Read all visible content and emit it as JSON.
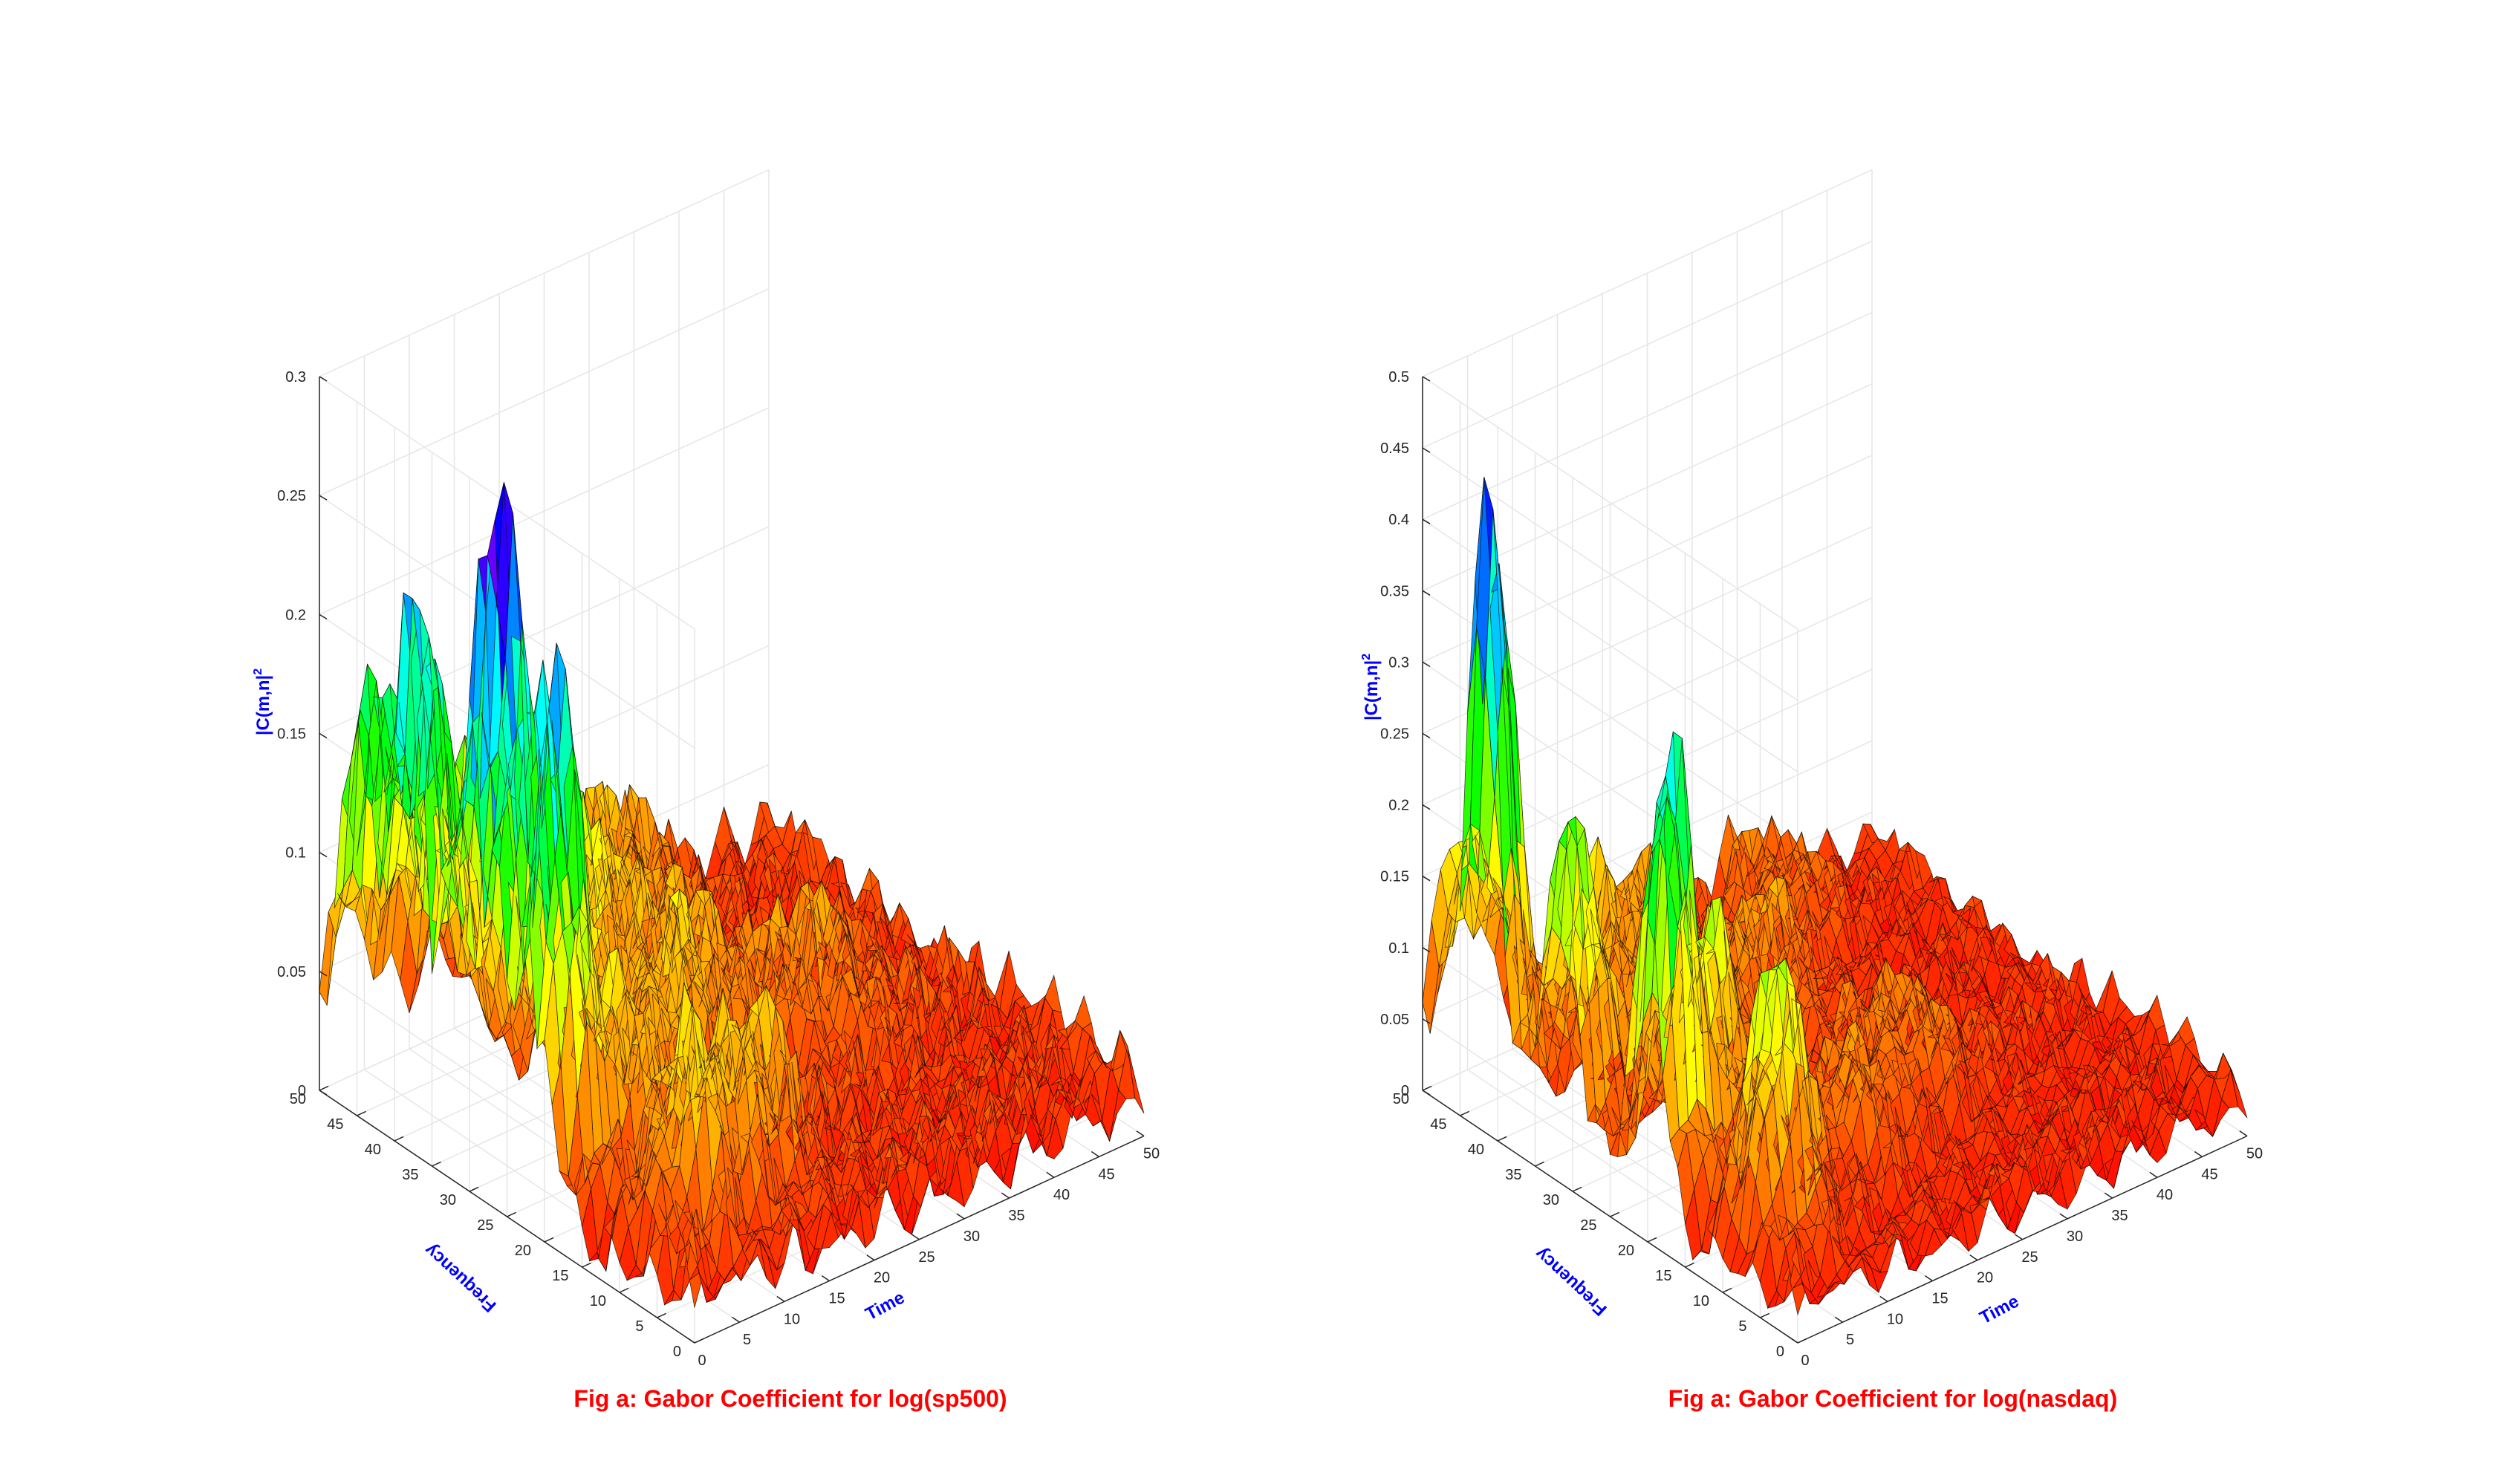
{
  "colors": {
    "label": "#0000ff",
    "caption": "#ff0000",
    "grid": "#e6e6e6",
    "axis": "#262626",
    "colormap": [
      "#ff0000",
      "#ff8000",
      "#ffff00",
      "#00ff00",
      "#00ffff",
      "#0000ff",
      "#ff00ff"
    ]
  },
  "chart_data": [
    {
      "type": "surface",
      "caption": "Fig a: Gabor Coefficient for log(sp500)",
      "xlabel": "Time",
      "ylabel": "Frequency",
      "zlabel": "|C(m,n|",
      "zlabel_sup": "2",
      "xlim": [
        0,
        50
      ],
      "ylim": [
        0,
        50
      ],
      "zlim": [
        0,
        0.3
      ],
      "xticks": [
        "0",
        "5",
        "10",
        "15",
        "20",
        "25",
        "30",
        "35",
        "40",
        "45",
        "50"
      ],
      "yticks": [
        "0",
        "5",
        "10",
        "15",
        "20",
        "25",
        "30",
        "35",
        "40",
        "45",
        "50"
      ],
      "zticks": [
        "0",
        "0.05",
        "0.1",
        "0.15",
        "0.2",
        "0.25",
        "0.3"
      ],
      "grid": true,
      "base": 0.045,
      "peaks": [
        {
          "x": 2,
          "y": 38,
          "z": 0.21,
          "w": 2.5
        },
        {
          "x": 2,
          "y": 30,
          "z": 0.19,
          "w": 2.5
        },
        {
          "x": 2,
          "y": 45,
          "z": 0.16,
          "w": 3
        },
        {
          "x": 3,
          "y": 22,
          "z": 0.2,
          "w": 2.5
        },
        {
          "x": 4,
          "y": 28,
          "z": 0.12,
          "w": 3
        },
        {
          "x": 10,
          "y": 45,
          "z": 0.09,
          "w": 3
        },
        {
          "x": 12,
          "y": 40,
          "z": 0.08,
          "w": 3
        },
        {
          "x": 15,
          "y": 35,
          "z": 0.1,
          "w": 3
        },
        {
          "x": 10,
          "y": 20,
          "z": 0.06,
          "w": 3
        },
        {
          "x": 8,
          "y": 10,
          "z": 0.08,
          "w": 3
        },
        {
          "x": 16,
          "y": 12,
          "z": 0.07,
          "w": 3
        },
        {
          "x": 18,
          "y": 25,
          "z": 0.07,
          "w": 3
        },
        {
          "x": 22,
          "y": 40,
          "z": 0.06,
          "w": 4
        },
        {
          "x": 25,
          "y": 30,
          "z": 0.05,
          "w": 4
        },
        {
          "x": 30,
          "y": 45,
          "z": 0.05,
          "w": 4
        },
        {
          "x": 35,
          "y": 25,
          "z": 0.04,
          "w": 4
        }
      ]
    },
    {
      "type": "surface",
      "caption": "Fig a: Gabor Coefficient for log(nasdaq)",
      "xlabel": "Time",
      "ylabel": "Frequency",
      "zlabel": "|C(m,n|",
      "zlabel_sup": "2",
      "xlim": [
        0,
        50
      ],
      "ylim": [
        0,
        50
      ],
      "zlim": [
        0,
        0.5
      ],
      "xticks": [
        "0",
        "5",
        "10",
        "15",
        "20",
        "25",
        "30",
        "35",
        "40",
        "45",
        "50"
      ],
      "yticks": [
        "0",
        "5",
        "10",
        "15",
        "20",
        "25",
        "30",
        "35",
        "40",
        "45",
        "50"
      ],
      "zticks": [
        "0",
        "0.05",
        "0.1",
        "0.15",
        "0.2",
        "0.25",
        "0.3",
        "0.35",
        "0.4",
        "0.45",
        "0.5"
      ],
      "grid": true,
      "base": 0.06,
      "peaks": [
        {
          "x": 1,
          "y": 42,
          "z": 0.47,
          "w": 2
        },
        {
          "x": 2,
          "y": 20,
          "z": 0.36,
          "w": 2
        },
        {
          "x": 2,
          "y": 32,
          "z": 0.25,
          "w": 2.5
        },
        {
          "x": 6,
          "y": 10,
          "z": 0.22,
          "w": 2.5
        },
        {
          "x": 8,
          "y": 22,
          "z": 0.18,
          "w": 3
        },
        {
          "x": 4,
          "y": 48,
          "z": 0.15,
          "w": 3
        },
        {
          "x": 12,
          "y": 40,
          "z": 0.12,
          "w": 3
        },
        {
          "x": 15,
          "y": 30,
          "z": 0.1,
          "w": 3
        },
        {
          "x": 20,
          "y": 45,
          "z": 0.09,
          "w": 3
        },
        {
          "x": 18,
          "y": 15,
          "z": 0.08,
          "w": 3
        },
        {
          "x": 25,
          "y": 35,
          "z": 0.08,
          "w": 4
        },
        {
          "x": 28,
          "y": 20,
          "z": 0.07,
          "w": 4
        },
        {
          "x": 35,
          "y": 45,
          "z": 0.06,
          "w": 4
        }
      ]
    }
  ]
}
